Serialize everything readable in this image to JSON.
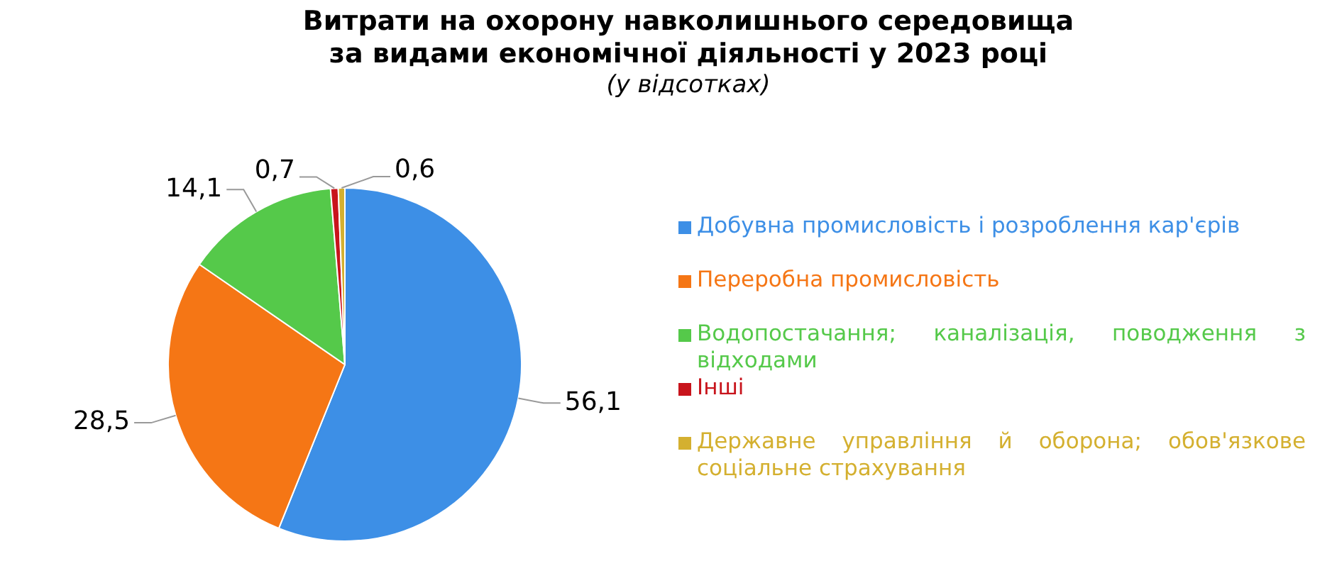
{
  "chart_data": {
    "type": "pie",
    "title": "Витрати на охорону навколишнього середовища за видами економічної діяльності у 2023 році",
    "subtitle": "(у відсотках)",
    "categories": [
      "Добувна промисловість і розроблення кар'єрів",
      "Переробна промисловість",
      "Водопостачання; каналізація, поводження з відходами",
      "Інші",
      "Державне управління й оборона; обов'язкове соціальне страхування"
    ],
    "values": [
      56.1,
      28.5,
      14.1,
      0.7,
      0.6
    ],
    "value_labels": [
      "56,1",
      "28,5",
      "14,1",
      "0,7",
      "0,6"
    ],
    "colors": [
      "#3d8fe6",
      "#f57615",
      "#55c94a",
      "#c8141c",
      "#d4b030"
    ],
    "legend": "right"
  }
}
